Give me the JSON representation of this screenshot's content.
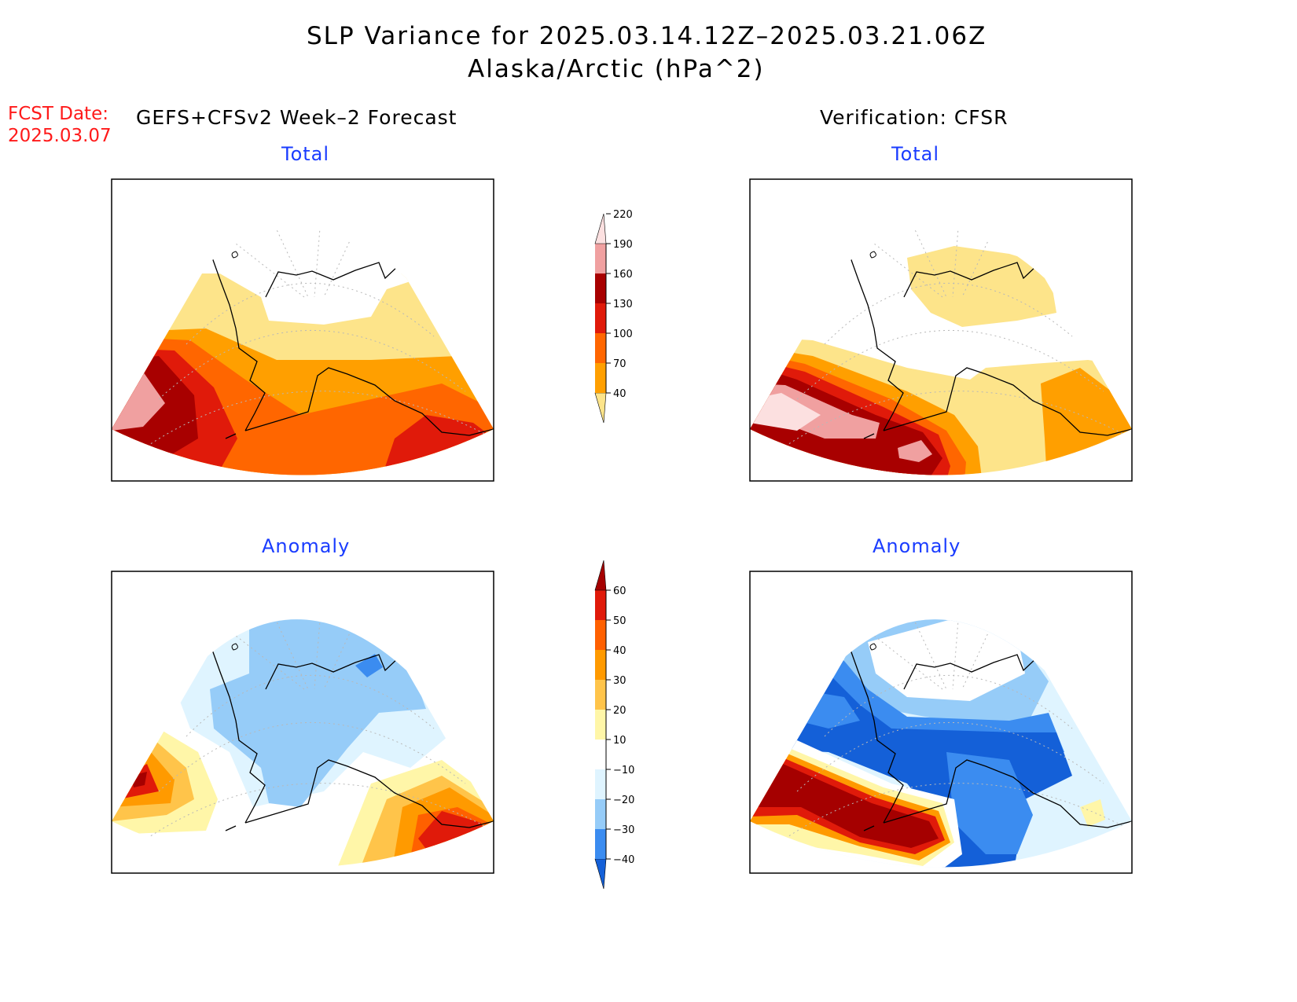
{
  "header": {
    "title": "SLP Variance for 2025.03.14.12Z–2025.03.21.06Z",
    "subtitle": "Alaska/Arctic (hPa^2)",
    "fcst_label": "FCST Date:",
    "fcst_date": "2025.03.07",
    "left_heading": "GEFS+CFSv2 Week–2 Forecast",
    "right_heading": "Verification: CFSR"
  },
  "panels": {
    "top_left": "Total",
    "top_right": "Total",
    "bottom_left": "Anomaly",
    "bottom_right": "Anomaly"
  },
  "colorbars": {
    "total": {
      "labels": [
        "40",
        "70",
        "100",
        "130",
        "160",
        "190",
        "220"
      ],
      "colors": [
        "#fde48a",
        "#ff9f00",
        "#ff6600",
        "#e01a0a",
        "#a80000",
        "#f0a0a0",
        "#fce0e0"
      ]
    },
    "anomaly": {
      "labels": [
        "−40",
        "−30",
        "−20",
        "−10",
        "10",
        "20",
        "30",
        "40",
        "50",
        "60"
      ],
      "colors": [
        "#1460d8",
        "#3b8cf0",
        "#96ccf8",
        "#dff4ff",
        "#ffffff",
        "#fff6a8",
        "#ffc44a",
        "#ff9a00",
        "#ff6000",
        "#e01a0a",
        "#a50000"
      ]
    }
  }
}
